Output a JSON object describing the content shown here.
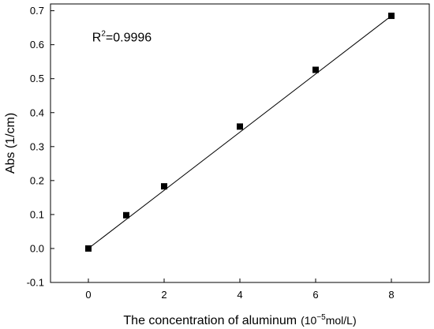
{
  "chart_data": {
    "type": "scatter",
    "xlabel": "The concentration of aluminum",
    "xlabel_unit": "(10",
    "xlabel_unit_exp": "−5",
    "xlabel_unit_tail": "mol/L)",
    "ylabel": "Abs (1/cm)",
    "xlim": [
      -1,
      9
    ],
    "ylim": [
      -0.1,
      0.72
    ],
    "xticks": [
      0,
      2,
      4,
      6,
      8
    ],
    "xtick_labels": [
      "0",
      "2",
      "4",
      "6",
      "8"
    ],
    "yticks": [
      -0.1,
      0.0,
      0.1,
      0.2,
      0.3,
      0.4,
      0.5,
      0.6,
      0.7
    ],
    "ytick_labels": [
      "-0.1",
      "0.0",
      "0.1",
      "0.2",
      "0.3",
      "0.4",
      "0.5",
      "0.6",
      "0.7"
    ],
    "series": [
      {
        "x": [
          0,
          1,
          2,
          4,
          6,
          8
        ],
        "y": [
          0.0,
          0.098,
          0.183,
          0.359,
          0.526,
          0.685
        ],
        "marker": "square",
        "color": "#000000"
      }
    ],
    "fit_line": {
      "x": [
        0,
        8
      ],
      "y": [
        0.0,
        0.685
      ]
    },
    "annotation": {
      "base": "R",
      "sup": "2",
      "tail": "=0.9996"
    },
    "grid": false
  }
}
